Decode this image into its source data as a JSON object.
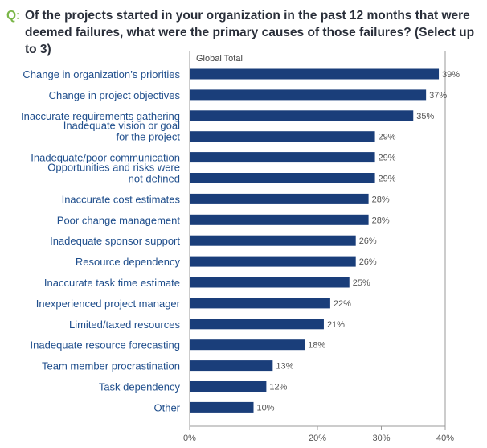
{
  "question": {
    "prefix": "Q:",
    "text": "Of the projects started in your organization in the past 12 months that were deemed failures, what were the primary causes of those failures? (Select up to 3)"
  },
  "colors": {
    "bar": "#1a3e7a",
    "category_text": "#1f4e8c",
    "accent": "#7ab648",
    "axis": "#999999"
  },
  "chart_data": {
    "type": "bar",
    "orientation": "horizontal",
    "title": "Of the projects started in your organization in the past 12 months that were deemed failures, what were the primary causes of those failures? (Select up to 3)",
    "series": [
      {
        "name": "Global Total",
        "values": [
          39,
          37,
          35,
          29,
          29,
          29,
          28,
          28,
          26,
          26,
          25,
          22,
          21,
          18,
          13,
          12,
          10
        ],
        "labels": [
          "39%",
          "37%",
          "35%",
          "29%",
          "29%",
          "29%",
          "28%",
          "28%",
          "26%",
          "26%",
          "25%",
          "22%",
          "21%",
          "18%",
          "13%",
          "12%",
          "10%"
        ]
      }
    ],
    "categories": [
      [
        "Change in organization’s priorities"
      ],
      [
        "Change in project objectives"
      ],
      [
        "Inaccurate requirements gathering"
      ],
      [
        "Inadequate vision or goal",
        "for the project"
      ],
      [
        "Inadequate/poor communication"
      ],
      [
        "Opportunities and risks were",
        "not defined"
      ],
      [
        "Inaccurate cost estimates"
      ],
      [
        "Poor change management"
      ],
      [
        "Inadequate sponsor support"
      ],
      [
        "Resource dependency"
      ],
      [
        "Inaccurate task time estimate"
      ],
      [
        "Inexperienced project manager"
      ],
      [
        "Limited/taxed resources"
      ],
      [
        "Inadequate resource forecasting"
      ],
      [
        "Team member procrastination"
      ],
      [
        "Task dependency"
      ],
      [
        "Other"
      ]
    ],
    "xlim": [
      0,
      40
    ],
    "xticks": [
      0,
      20,
      30,
      40
    ],
    "xtick_labels": [
      "0%",
      "20%",
      "30%",
      "40%"
    ],
    "grid": false,
    "legend": "top-left"
  }
}
